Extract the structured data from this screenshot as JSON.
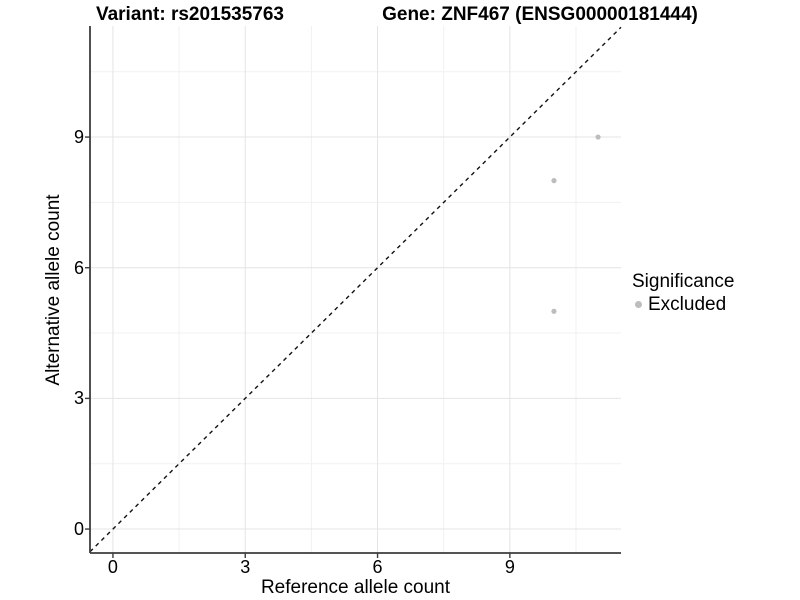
{
  "chart_data": {
    "type": "scatter",
    "title_left": "Variant: rs201535763",
    "title_right": "Gene: ZNF467 (ENSG00000181444)",
    "xlabel": "Reference allele count",
    "ylabel": "Alternative allele count",
    "xlim": [
      -0.52,
      11.52
    ],
    "ylim": [
      -0.55,
      11.55
    ],
    "ticks_major": [
      0,
      3,
      6,
      9
    ],
    "ticks_minor": [
      1.5,
      4.5,
      7.5,
      10.5
    ],
    "grid": true,
    "reference_line": {
      "type": "abline",
      "slope": 1,
      "intercept": 0,
      "style": "dashed"
    },
    "series": [
      {
        "name": "Excluded",
        "color": "#bdbdbd",
        "points": [
          {
            "x": 10,
            "y": 5
          },
          {
            "x": 10,
            "y": 8
          },
          {
            "x": 11,
            "y": 9
          }
        ]
      }
    ],
    "legend": {
      "title": "Significance",
      "position": "right",
      "items": [
        {
          "label": "Excluded",
          "color": "#bdbdbd"
        }
      ]
    }
  },
  "colors": {
    "point": "#bdbdbd",
    "grid_major": "#e4e4e4",
    "grid_minor": "#f1f1f1",
    "axis_line": "#3c3c3c",
    "reference_line": "#111111",
    "text": "#000000",
    "background": "#ffffff"
  }
}
